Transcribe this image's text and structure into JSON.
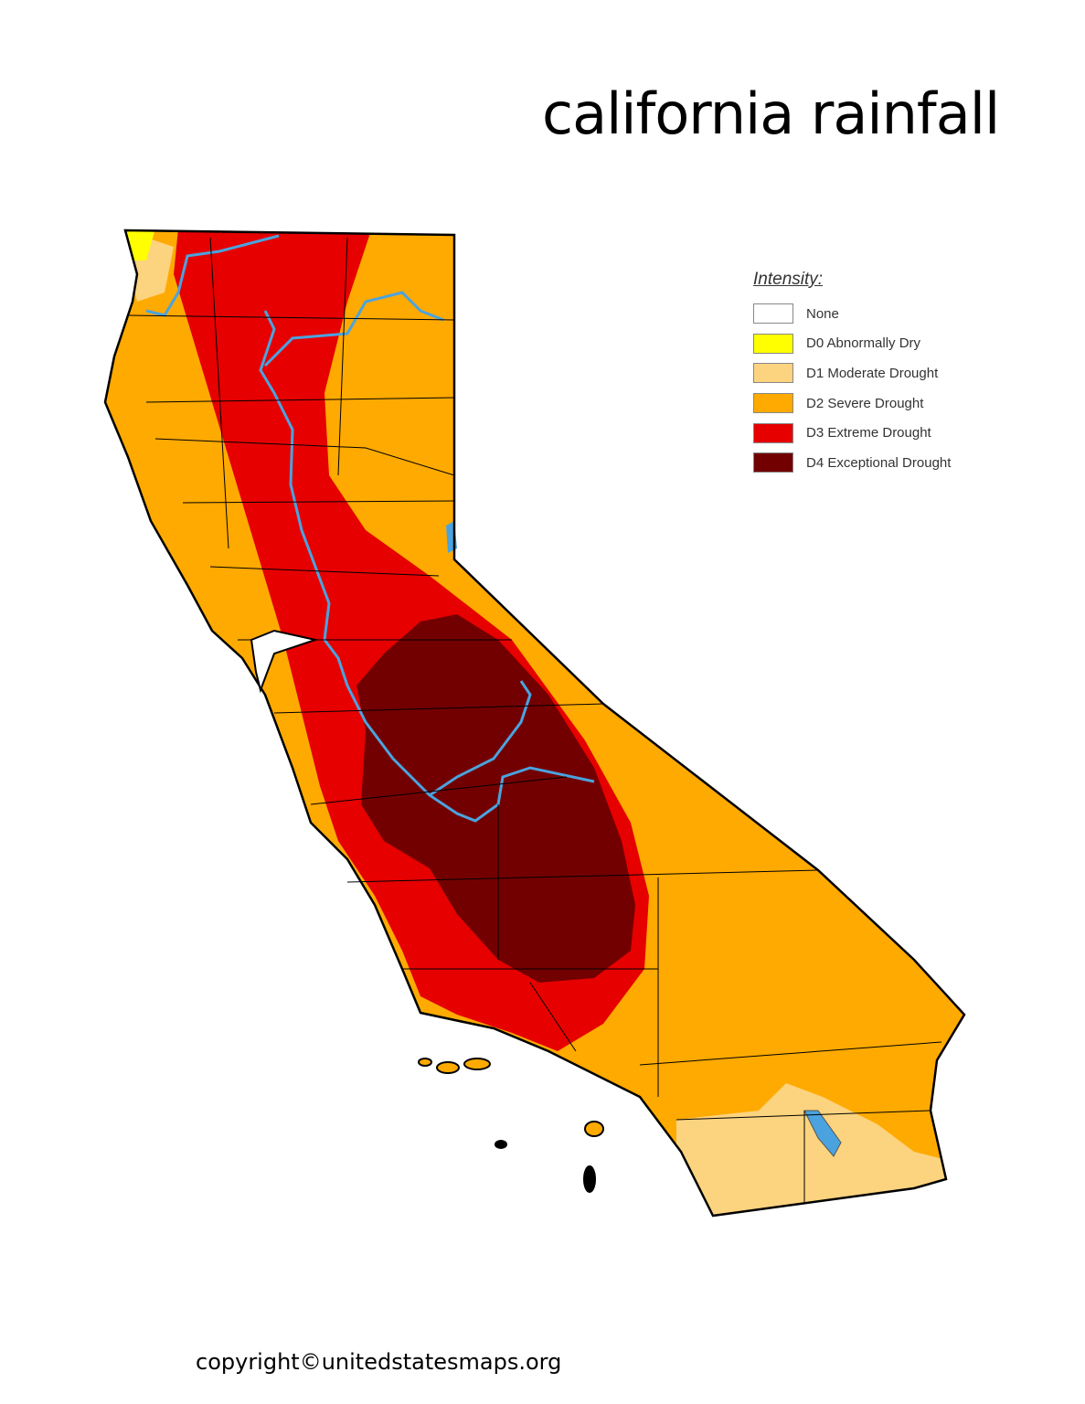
{
  "title": "california rainfall",
  "copyright": "copyright©unitedstatesmaps.org",
  "legend": {
    "title": "Intensity:",
    "items": [
      {
        "label": "None",
        "color": "#ffffff"
      },
      {
        "label": "D0 Abnormally Dry",
        "color": "#ffff00"
      },
      {
        "label": "D1 Moderate Drought",
        "color": "#fcd37f"
      },
      {
        "label": "D2 Severe Drought",
        "color": "#ffaa00"
      },
      {
        "label": "D3 Extreme Drought",
        "color": "#e60000"
      },
      {
        "label": "D4 Exceptional Drought",
        "color": "#730000"
      }
    ]
  },
  "colors": {
    "water": "#4aa3df",
    "border": "#000000"
  }
}
